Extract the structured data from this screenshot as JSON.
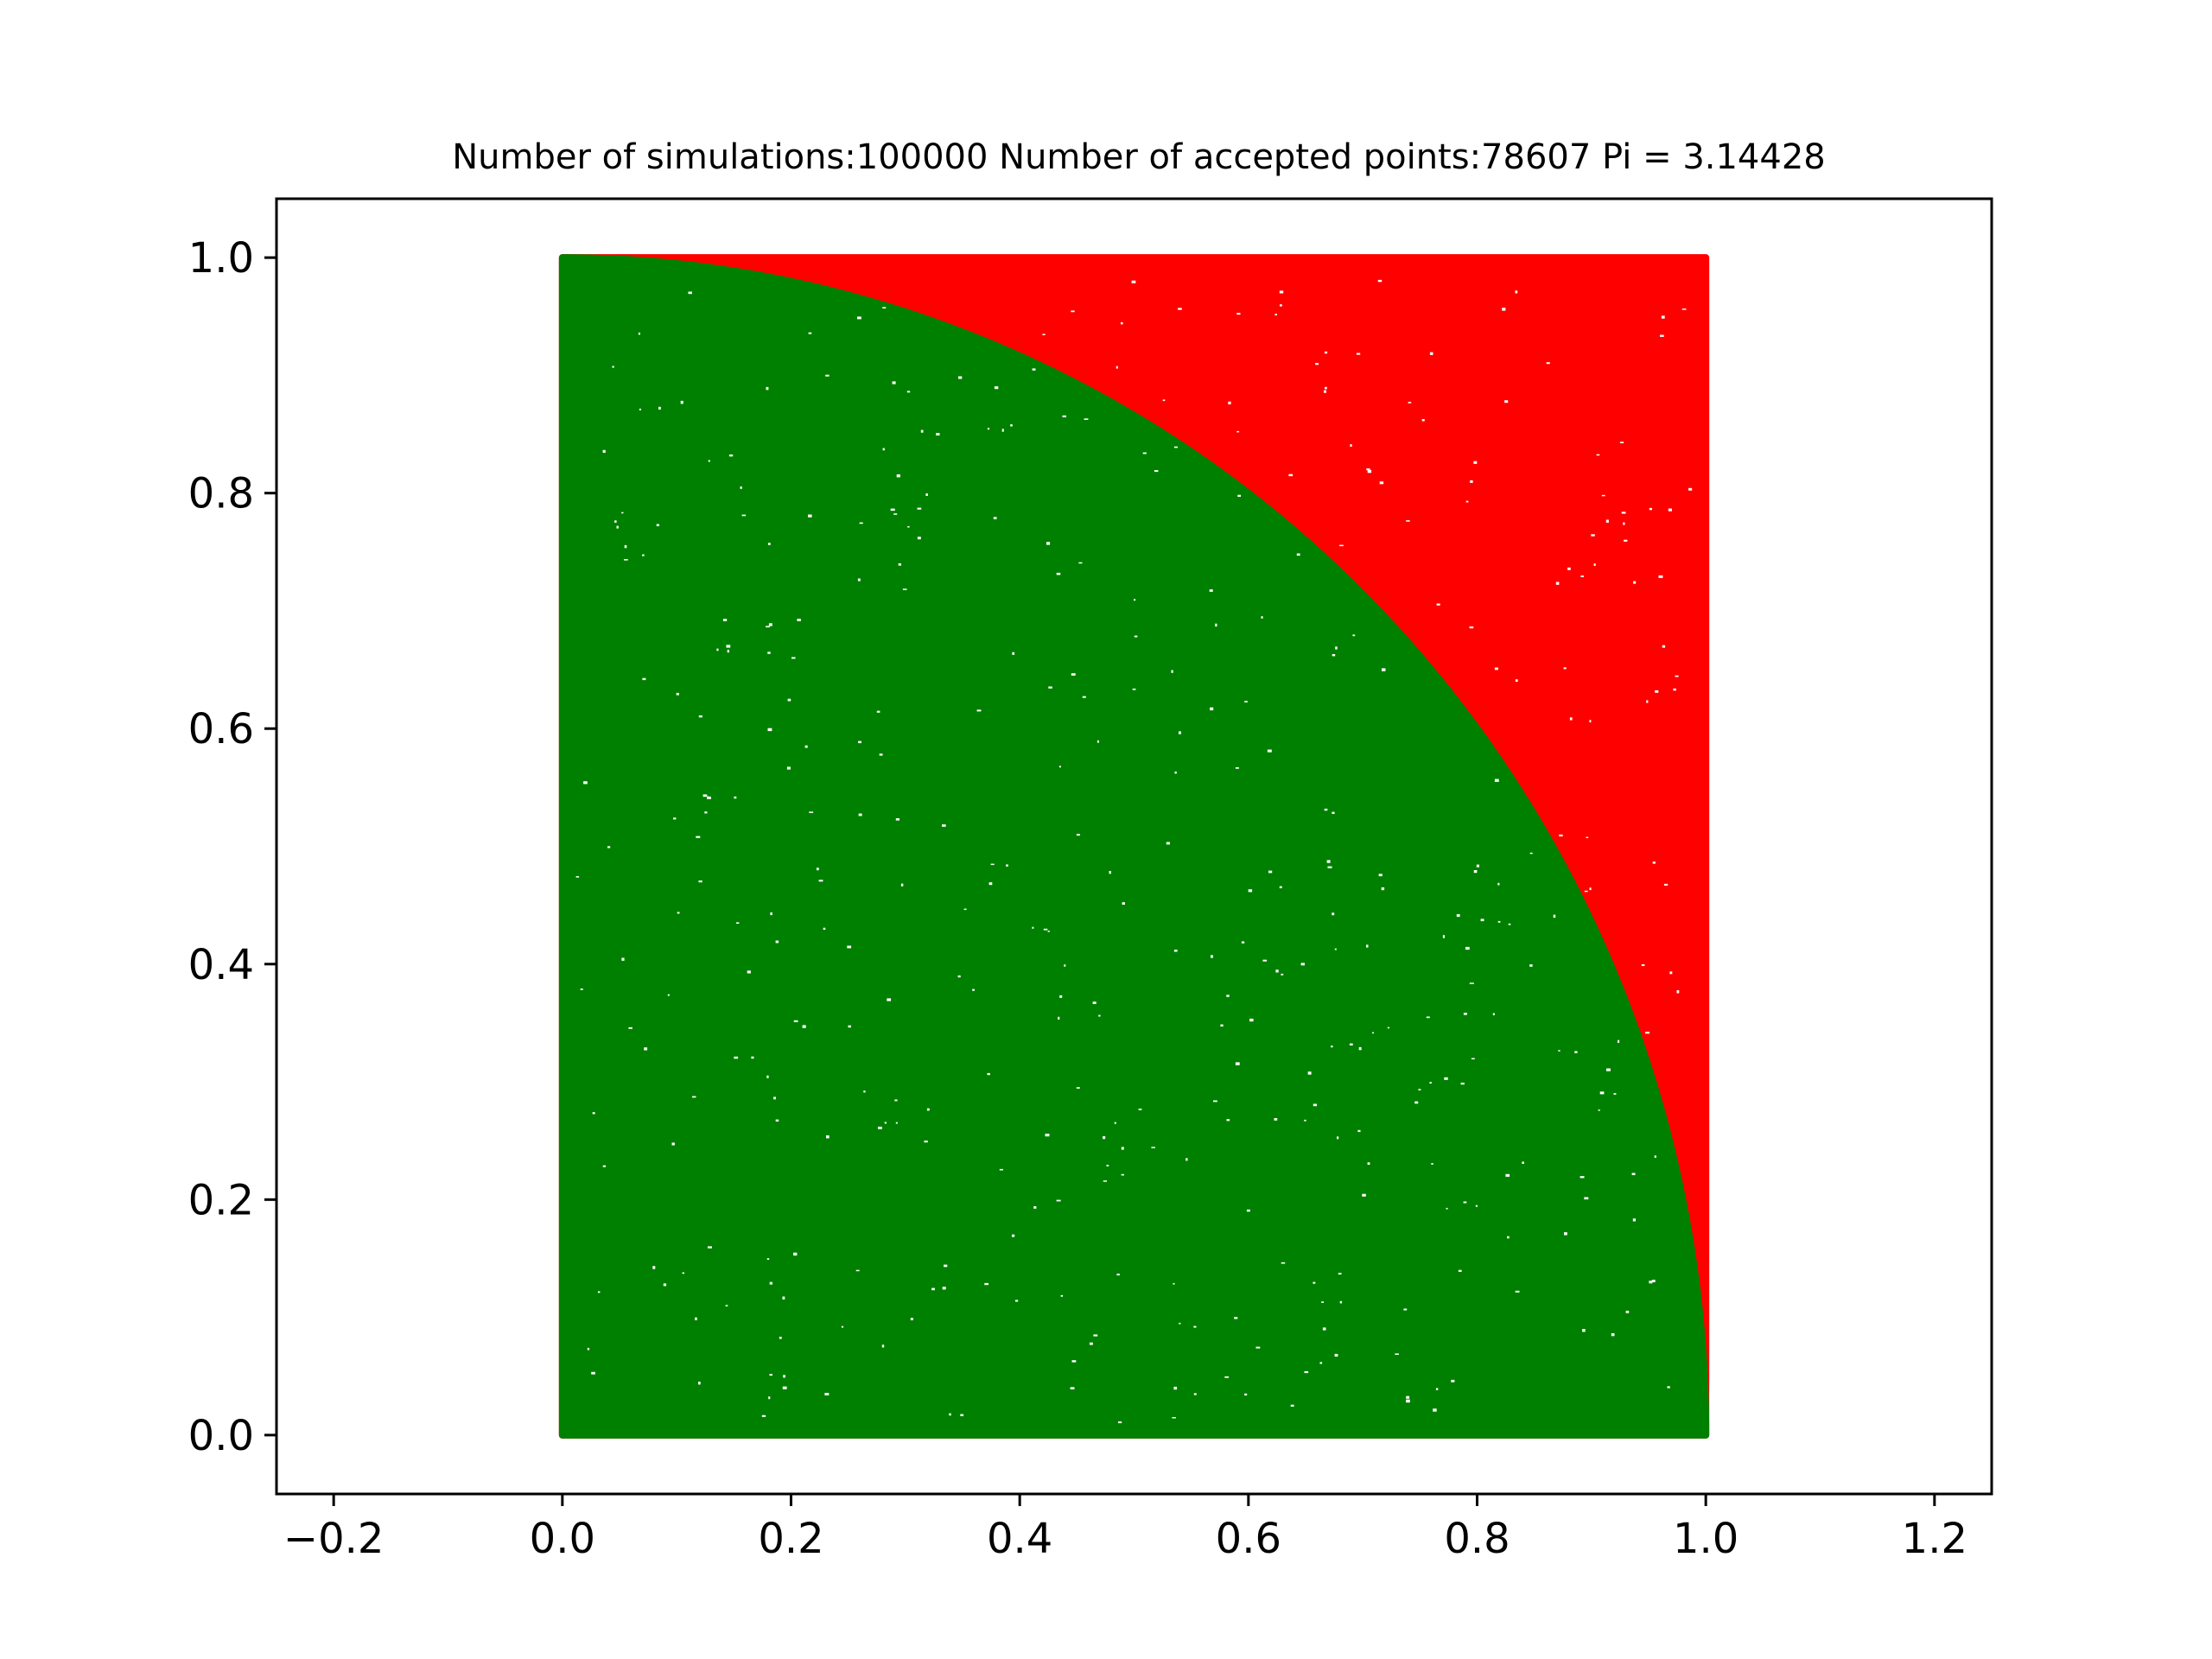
{
  "chart_data": {
    "type": "scatter",
    "title": "Number of simulations:100000 Number of accepted points:78607 Pi = 3.14428",
    "xlabel": "",
    "ylabel": "",
    "xlim": [
      -0.25,
      1.25
    ],
    "ylim": [
      -0.05,
      1.05
    ],
    "xticks": [
      -0.2,
      0.0,
      0.2,
      0.4,
      0.6,
      0.8,
      1.0,
      1.2
    ],
    "xtick_labels": [
      "−0.2",
      "0.0",
      "0.2",
      "0.4",
      "0.6",
      "0.8",
      "1.0",
      "1.2"
    ],
    "yticks": [
      0.0,
      0.2,
      0.4,
      0.6,
      0.8,
      1.0
    ],
    "ytick_labels": [
      "0.0",
      "0.2",
      "0.4",
      "0.6",
      "0.8",
      "1.0"
    ],
    "grid": false,
    "series": [
      {
        "region": "rejected (outside unit circle)",
        "color": "#ff0000",
        "x_range": [
          0.0,
          1.0
        ],
        "y_range": [
          0.0,
          1.0
        ],
        "condition": "x^2 + y^2 > 1"
      },
      {
        "region": "accepted (inside unit circle)",
        "color": "#008000",
        "x_range": [
          0.0,
          1.0
        ],
        "y_range": [
          0.0,
          1.0
        ],
        "condition": "x^2 + y^2 <= 1",
        "count": 78607
      }
    ],
    "total_points": 100000,
    "pi_estimate": 3.14428
  }
}
